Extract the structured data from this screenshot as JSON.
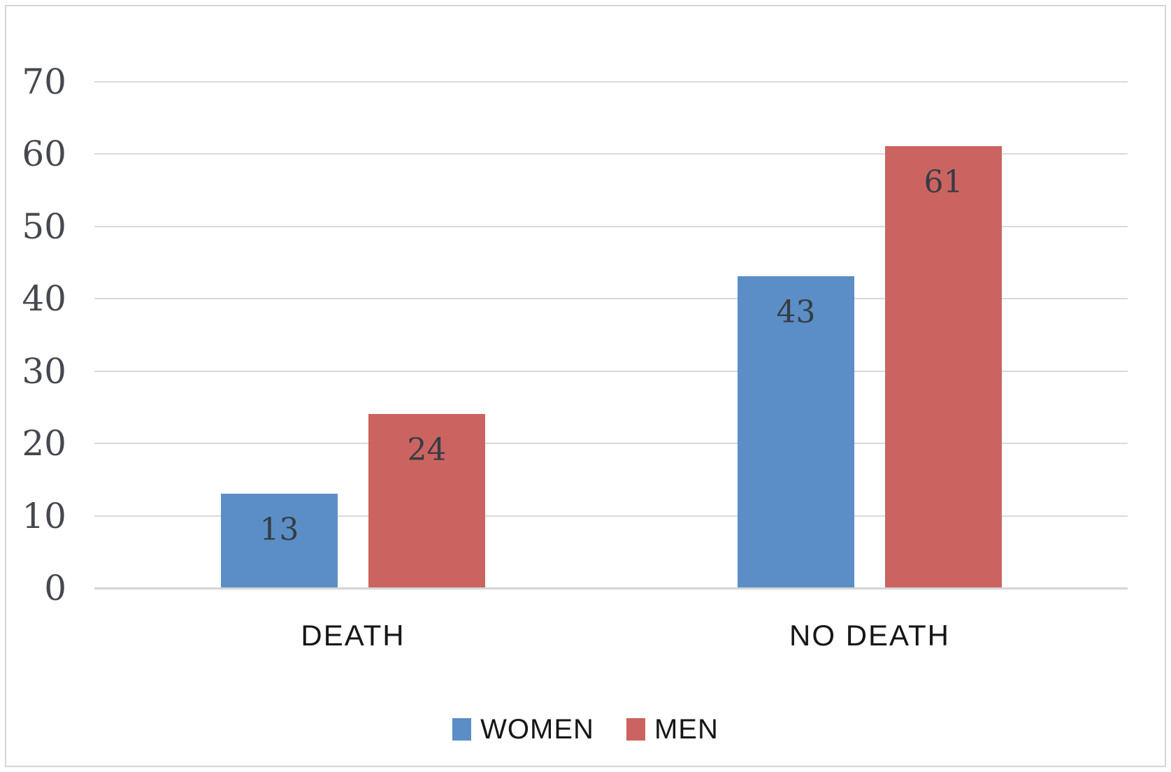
{
  "chart_data": {
    "type": "bar",
    "title": "",
    "xlabel": "",
    "ylabel": "",
    "categories": [
      "DEATH",
      "NO DEATH"
    ],
    "series": [
      {
        "name": "WOMEN",
        "color": "#5b8ec6",
        "values": [
          13,
          43
        ]
      },
      {
        "name": "MEN",
        "color": "#cb6461",
        "values": [
          24,
          61
        ]
      }
    ],
    "ylim": [
      0,
      70
    ],
    "yticks": [
      0,
      10,
      20,
      30,
      40,
      50,
      60,
      70
    ],
    "grid": true,
    "bar_value_labels": true,
    "legend_position": "bottom"
  },
  "colors": {
    "women_bar": "#5b8ec6",
    "men_bar": "#cb6461",
    "gridline": "#d9d9d9",
    "tick_text": "#46484f",
    "bar_label_text": "#363c43",
    "category_text": "#161616",
    "legend_text": "#161616",
    "frame_border": "#d3d6d9",
    "background": "#ffffff"
  }
}
